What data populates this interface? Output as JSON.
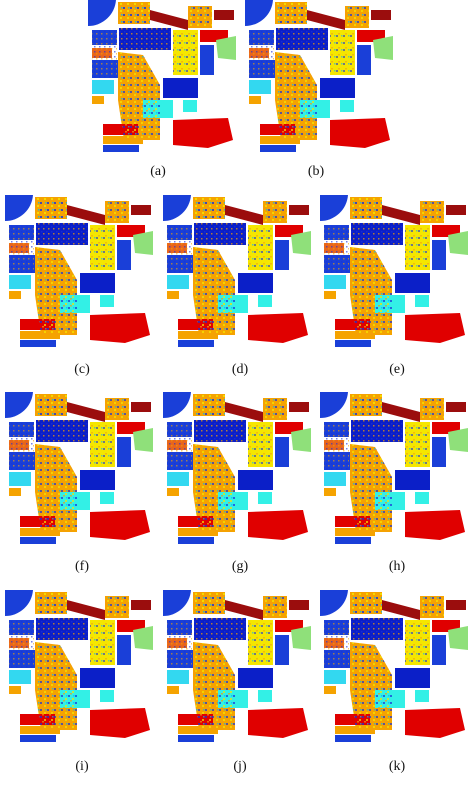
{
  "figure": {
    "panels": [
      {
        "label": "(a)"
      },
      {
        "label": "(b)"
      },
      {
        "label": "(c)"
      },
      {
        "label": "(d)"
      },
      {
        "label": "(e)"
      },
      {
        "label": "(f)"
      },
      {
        "label": "(g)"
      },
      {
        "label": "(h)"
      },
      {
        "label": "(i)"
      },
      {
        "label": "(j)"
      },
      {
        "label": "(k)"
      }
    ]
  }
}
